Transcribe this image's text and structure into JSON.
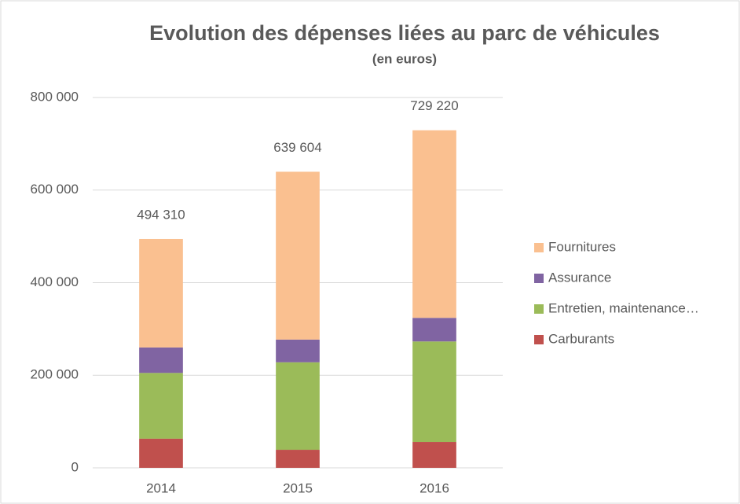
{
  "chart_data": {
    "type": "stacked_bar",
    "title": "Evolution des dépenses liées au parc de véhicules",
    "subtitle": "(en euros)",
    "categories": [
      "2014",
      "2015",
      "2016"
    ],
    "series": [
      {
        "name": "Carburants",
        "color": "#c0504d",
        "values": [
          63000,
          39000,
          56000
        ]
      },
      {
        "name": "Entretien, maintenance…",
        "color": "#9bbb59",
        "values": [
          142000,
          189000,
          217000
        ]
      },
      {
        "name": "Assurance",
        "color": "#8064a2",
        "values": [
          55000,
          49000,
          51000
        ]
      },
      {
        "name": "Fournitures",
        "color": "#fac090",
        "values": [
          234310,
          362604,
          405220
        ]
      }
    ],
    "total_labels": [
      "494 310",
      "639 604",
      "729 220"
    ],
    "ylim": [
      0,
      800000
    ],
    "yticks": [
      0,
      {
        "value": 200000,
        "label": "200 000"
      },
      {
        "value": 400000,
        "label": "400 000"
      },
      {
        "value": 600000,
        "label": "600 000"
      },
      {
        "value": 800000,
        "label": "800 000"
      }
    ],
    "grid": true,
    "legend": "right"
  }
}
